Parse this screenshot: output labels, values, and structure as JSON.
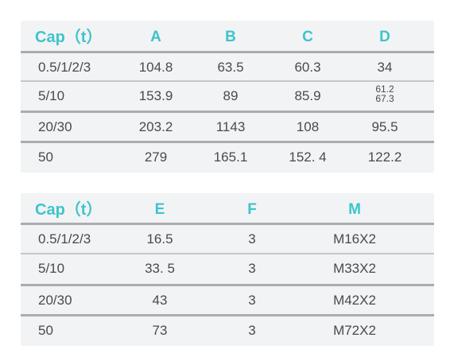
{
  "table1": {
    "headers": [
      "Cap（t）",
      "A",
      "B",
      "C",
      "D"
    ],
    "rows": [
      [
        "0.5/1/2/3",
        "104.8",
        "63.5",
        "60.3",
        "34"
      ],
      [
        "5/10",
        "153.9",
        "89",
        "85.9",
        [
          "61.2",
          "67.3"
        ]
      ],
      [
        "20/30",
        "203.2",
        "1143",
        "108",
        "95.5"
      ],
      [
        "50",
        "279",
        "165.1",
        "152. 4",
        "122.2"
      ]
    ]
  },
  "table2": {
    "headers": [
      "Cap（t）",
      "E",
      "F",
      "M"
    ],
    "rows": [
      [
        "0.5/1/2/3",
        "16.5",
        "3",
        "M16X2"
      ],
      [
        "5/10",
        "33. 5",
        "3",
        "M33X2"
      ],
      [
        "20/30",
        "43",
        "3",
        "M42X2"
      ],
      [
        "50",
        "73",
        "3",
        "M72X2"
      ]
    ]
  },
  "colors": {
    "header_text": "#3ec4cd",
    "body_text": "#4a4a4a",
    "panel_bg": "#f2f3f4",
    "rule": "#c5c7ca"
  }
}
